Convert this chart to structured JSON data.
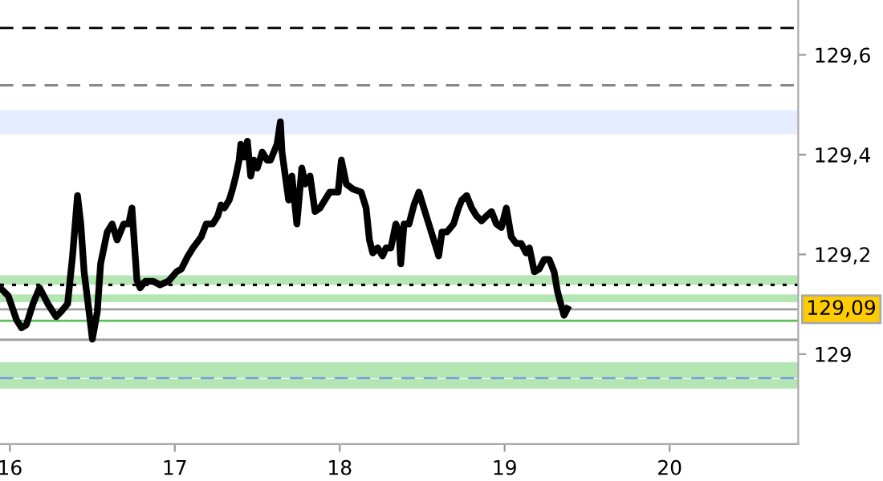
{
  "chart_data": {
    "type": "line",
    "x": [
      15.94,
      15.99,
      16.04,
      16.07,
      16.1,
      16.14,
      16.18,
      16.23,
      16.28,
      16.31,
      16.35,
      16.38,
      16.41,
      16.43,
      16.45,
      16.48,
      16.5,
      16.53,
      16.55,
      16.59,
      16.62,
      16.65,
      16.69,
      16.72,
      16.74,
      16.77,
      16.79,
      16.82,
      16.87,
      16.91,
      16.96,
      17.01,
      17.04,
      17.08,
      17.11,
      17.16,
      17.19,
      17.23,
      17.26,
      17.28,
      17.3,
      17.33,
      17.35,
      17.37,
      17.39,
      17.4,
      17.42,
      17.44,
      17.46,
      17.48,
      17.5,
      17.53,
      17.56,
      17.58,
      17.62,
      17.64,
      17.65,
      17.67,
      17.69,
      17.71,
      17.74,
      17.77,
      17.79,
      17.82,
      17.85,
      17.88,
      17.94,
      17.99,
      18.01,
      18.04,
      18.08,
      18.13,
      18.16,
      18.18,
      18.2,
      18.23,
      18.26,
      18.28,
      18.31,
      18.34,
      18.36,
      18.37,
      18.39,
      18.42,
      18.45,
      18.48,
      18.51,
      18.54,
      18.57,
      18.6,
      18.62,
      18.65,
      18.69,
      18.72,
      18.74,
      18.77,
      18.8,
      18.83,
      18.86,
      18.89,
      18.92,
      18.95,
      18.98,
      19.01,
      19.04,
      19.07,
      19.1,
      19.13,
      19.15,
      19.18,
      19.21,
      19.24,
      19.27,
      19.3,
      19.32,
      19.34,
      19.36,
      19.38
    ],
    "series": [
      {
        "color": "#000000",
        "values": [
          129.133,
          129.117,
          129.069,
          129.053,
          129.059,
          129.101,
          129.133,
          129.101,
          129.075,
          129.085,
          129.101,
          129.197,
          129.318,
          129.261,
          129.165,
          129.085,
          129.03,
          129.085,
          129.181,
          129.245,
          129.261,
          129.229,
          129.261,
          129.261,
          129.293,
          129.149,
          129.133,
          129.146,
          129.146,
          129.139,
          129.146,
          129.165,
          129.171,
          129.197,
          129.213,
          129.235,
          129.261,
          129.261,
          129.277,
          129.299,
          129.293,
          129.309,
          129.331,
          129.357,
          129.389,
          129.421,
          129.395,
          129.427,
          129.357,
          129.389,
          129.373,
          129.405,
          129.389,
          129.389,
          129.421,
          129.466,
          129.405,
          129.357,
          129.309,
          129.357,
          129.261,
          129.373,
          129.341,
          129.357,
          129.286,
          129.293,
          129.325,
          129.325,
          129.389,
          129.341,
          129.331,
          129.325,
          129.293,
          129.229,
          129.203,
          129.213,
          129.197,
          129.213,
          129.213,
          129.261,
          129.245,
          129.181,
          129.261,
          129.261,
          129.299,
          129.325,
          129.293,
          129.261,
          129.229,
          129.197,
          129.245,
          129.245,
          129.261,
          129.293,
          129.309,
          129.318,
          129.293,
          129.277,
          129.267,
          129.277,
          129.286,
          129.261,
          129.254,
          129.293,
          129.235,
          129.222,
          129.222,
          129.203,
          129.213,
          129.165,
          129.171,
          129.19,
          129.19,
          129.165,
          129.126,
          129.101,
          129.078,
          129.091
        ]
      }
    ],
    "xlim": [
      15.94,
      20.78
    ],
    "xticks": [
      16,
      17,
      18,
      19,
      20
    ],
    "ylim": [
      128.82,
      129.71
    ],
    "yticks": [
      {
        "value": 129.6,
        "label": "129,6"
      },
      {
        "value": 129.4,
        "label": "129,4"
      },
      {
        "value": 129.2,
        "label": "129,2"
      },
      129
    ],
    "ref_lines": [
      {
        "axis": "y",
        "value": 129.654,
        "color": "#000000",
        "line_style": "dashed"
      },
      {
        "axis": "y",
        "value": 129.539,
        "color": "#808080",
        "line_style": "dashed"
      },
      {
        "axis": "y",
        "value": 129.139,
        "color": "#000000",
        "line_style": "dotted"
      },
      {
        "axis": "y",
        "value": 129.09,
        "label": "129,09",
        "color": "#a0a0a0",
        "line_style": "solid"
      },
      {
        "axis": "y",
        "value": 129.067,
        "color": "#5cbf5c",
        "line_style": "solid"
      },
      {
        "axis": "y",
        "value": 129.029,
        "color": "#a0a0a0",
        "line_style": "solid"
      },
      {
        "axis": "y",
        "value": 128.952,
        "color": "#7a9ee0",
        "line_style": "dashed"
      }
    ],
    "bands": [
      {
        "axis": "y",
        "from": 129.441,
        "to": 129.489,
        "color": "#e6ecff"
      },
      {
        "axis": "y",
        "from": 129.139,
        "to": 129.158,
        "color": "#b3e6b3"
      },
      {
        "axis": "y",
        "from": 129.104,
        "to": 129.12,
        "color": "#b3e6b3"
      },
      {
        "axis": "y",
        "from": 128.952,
        "to": 128.984,
        "color": "#b3e6b3"
      },
      {
        "axis": "y",
        "from": 128.931,
        "to": 128.95,
        "color": "#b3e6b3"
      }
    ],
    "grid": false,
    "legend": false
  }
}
